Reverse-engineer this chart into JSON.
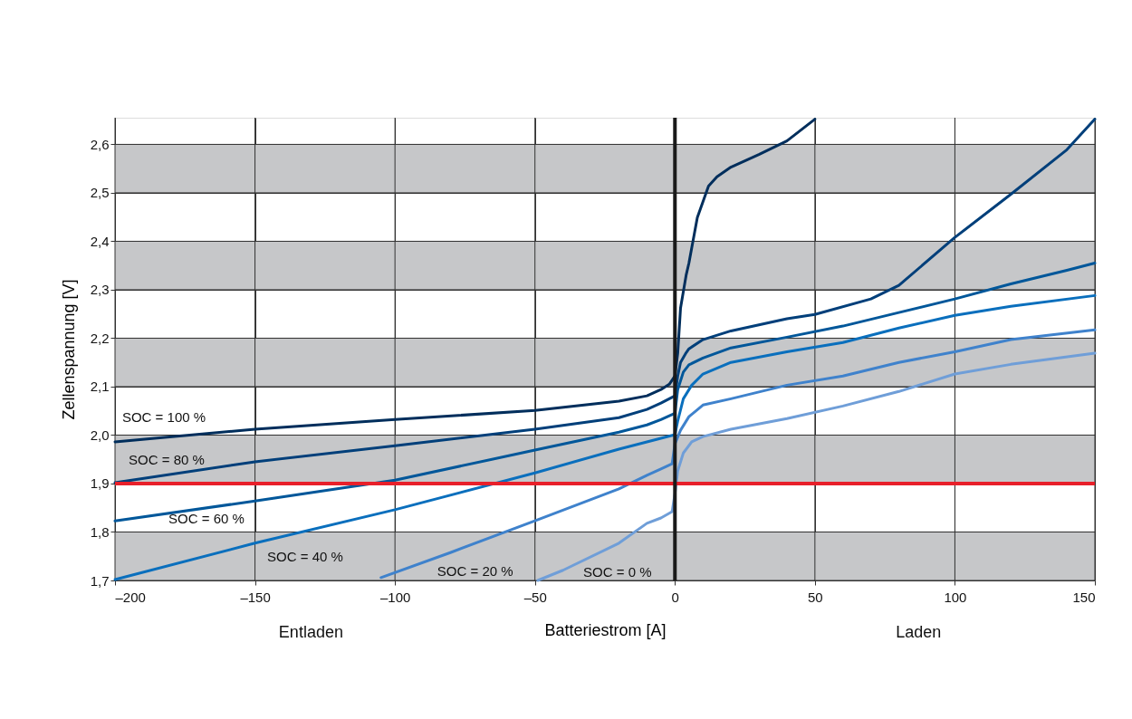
{
  "chart_data": {
    "type": "line",
    "xlabel": "Batteriestrom [A]",
    "ylabel": "Zellenspannung [V]",
    "xlim": [
      -200,
      150
    ],
    "ylim": [
      1.7,
      2.655
    ],
    "xticks": [
      {
        "value": -200,
        "label": "–200"
      },
      {
        "value": -150,
        "label": "–150"
      },
      {
        "value": -100,
        "label": "–100"
      },
      {
        "value": -50,
        "label": "–50"
      },
      0,
      50,
      100,
      150
    ],
    "yticks": [
      {
        "value": 1.7,
        "label": "1,7"
      },
      {
        "value": 1.8,
        "label": "1,8"
      },
      {
        "value": 1.9,
        "label": "1,9"
      },
      {
        "value": 2.0,
        "label": "2,0"
      },
      {
        "value": 2.1,
        "label": "2,1"
      },
      {
        "value": 2.2,
        "label": "2,2"
      },
      {
        "value": 2.3,
        "label": "2,3"
      },
      {
        "value": 2.4,
        "label": "2,4"
      },
      {
        "value": 2.5,
        "label": "2,5"
      },
      {
        "value": 2.6,
        "label": "2,6"
      }
    ],
    "grid": true,
    "marker": "none",
    "line_style": "solid",
    "series": [
      {
        "name": "SOC = 100 %",
        "color": "#002e5c",
        "x": [
          -200,
          -150,
          -100,
          -50,
          -20,
          -10,
          -5,
          -2,
          0,
          1,
          2,
          4,
          5,
          8,
          12,
          15,
          20,
          30,
          40,
          50
        ],
        "values": [
          1.986,
          2.012,
          2.032,
          2.051,
          2.07,
          2.081,
          2.094,
          2.105,
          2.122,
          2.169,
          2.262,
          2.33,
          2.355,
          2.449,
          2.514,
          2.533,
          2.553,
          2.579,
          2.607,
          2.652
        ]
      },
      {
        "name": "SOC = 80 %",
        "color": "#003f7a",
        "x": [
          -200,
          -150,
          -100,
          -50,
          -20,
          -10,
          -5,
          0,
          1,
          2,
          4,
          5,
          10,
          20,
          40,
          50,
          70,
          80,
          100,
          120,
          140,
          150
        ],
        "values": [
          1.902,
          1.945,
          1.978,
          2.012,
          2.036,
          2.053,
          2.066,
          2.081,
          2.122,
          2.15,
          2.17,
          2.178,
          2.197,
          2.215,
          2.24,
          2.249,
          2.281,
          2.309,
          2.408,
          2.497,
          2.589,
          2.652
        ]
      },
      {
        "name": "SOC = 60 %",
        "color": "#00579a",
        "x": [
          -200,
          -150,
          -100,
          -50,
          -20,
          -10,
          -5,
          0,
          1,
          3,
          5,
          10,
          20,
          40,
          60,
          80,
          100,
          120,
          140,
          150
        ],
        "values": [
          1.823,
          1.864,
          1.907,
          1.969,
          2.006,
          2.021,
          2.032,
          2.045,
          2.094,
          2.13,
          2.145,
          2.159,
          2.18,
          2.202,
          2.225,
          2.253,
          2.281,
          2.312,
          2.34,
          2.355
        ]
      },
      {
        "name": "SOC = 40 %",
        "color": "#0a6fbd",
        "x": [
          -200,
          -150,
          -100,
          -50,
          -20,
          -10,
          0,
          1,
          3,
          6,
          10,
          20,
          40,
          60,
          80,
          100,
          120,
          150
        ],
        "values": [
          1.702,
          1.777,
          1.846,
          1.922,
          1.971,
          1.986,
          2.001,
          2.029,
          2.075,
          2.103,
          2.126,
          2.15,
          2.172,
          2.191,
          2.221,
          2.247,
          2.266,
          2.288
        ]
      },
      {
        "name": "SOC = 20 %",
        "color": "#3f82cc",
        "x": [
          -105,
          -80,
          -50,
          -20,
          -10,
          -5,
          -1,
          0,
          2,
          5,
          10,
          20,
          40,
          60,
          80,
          100,
          120,
          150
        ],
        "values": [
          1.706,
          1.758,
          1.823,
          1.889,
          1.917,
          1.93,
          1.941,
          1.982,
          2.01,
          2.038,
          2.062,
          2.075,
          2.103,
          2.122,
          2.15,
          2.172,
          2.197,
          2.217
        ]
      },
      {
        "name": "SOC = 0 %",
        "color": "#6f9ed8",
        "x": [
          -49,
          -40,
          -20,
          -10,
          -5,
          -1,
          0,
          1,
          3,
          6,
          10,
          20,
          40,
          60,
          80,
          100,
          120,
          150
        ],
        "values": [
          1.7,
          1.721,
          1.777,
          1.818,
          1.829,
          1.842,
          1.879,
          1.926,
          1.963,
          1.986,
          1.997,
          2.012,
          2.034,
          2.06,
          2.09,
          2.126,
          2.146,
          2.169
        ]
      }
    ],
    "ref_lines": [
      {
        "axis": "y",
        "value": 1.9,
        "color": "#e8202a"
      },
      {
        "axis": "x",
        "value": 0,
        "color": "#1a1a1a"
      }
    ],
    "bands": [
      {
        "axis": "y",
        "from": 1.7,
        "to": 1.8,
        "color": "#c6c7c9"
      },
      {
        "axis": "y",
        "from": 1.9,
        "to": 2.0,
        "color": "#c6c7c9"
      },
      {
        "axis": "y",
        "from": 2.1,
        "to": 2.2,
        "color": "#c6c7c9"
      },
      {
        "axis": "y",
        "from": 2.3,
        "to": 2.4,
        "color": "#c6c7c9"
      },
      {
        "axis": "y",
        "from": 2.5,
        "to": 2.6,
        "color": "#c6c7c9"
      }
    ],
    "annotations": [
      "Entladen",
      "Laden"
    ]
  }
}
